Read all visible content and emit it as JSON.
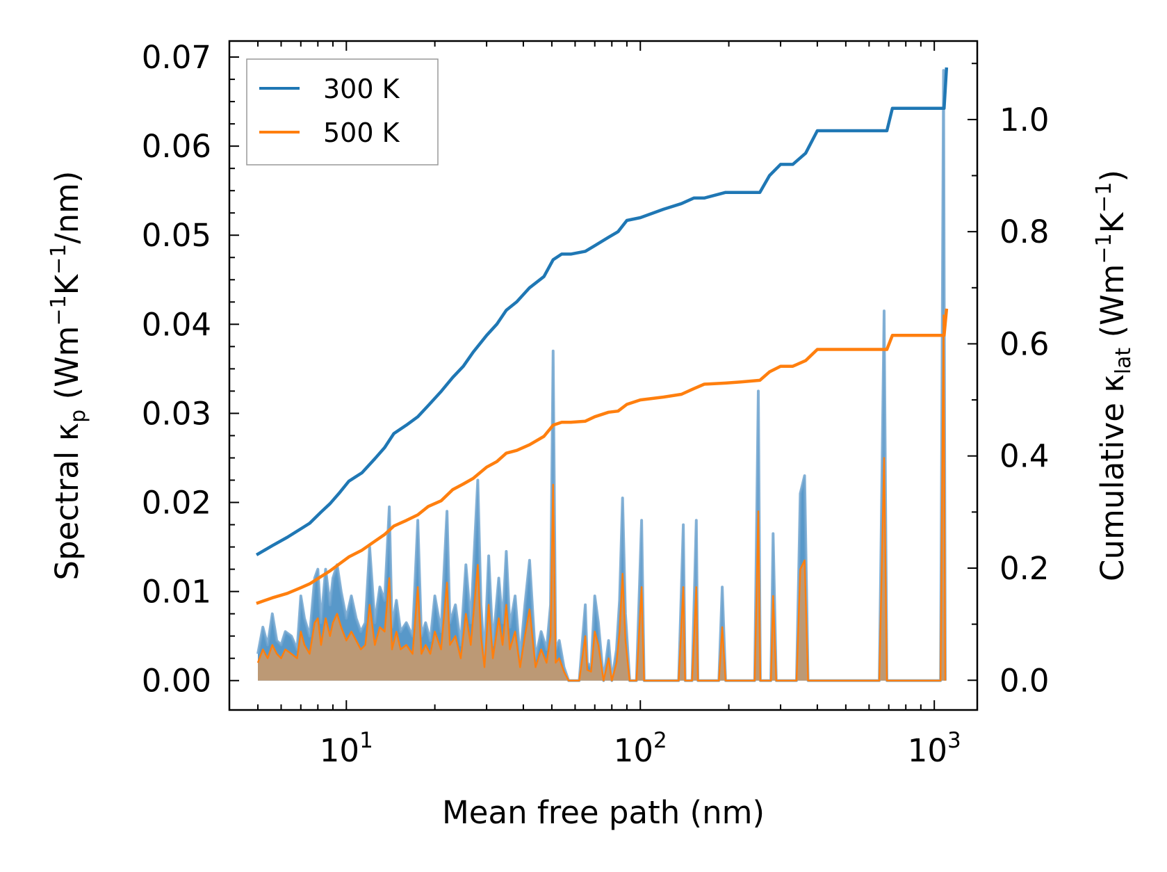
{
  "chart_data": {
    "type": "line",
    "xlabel": "Mean free path (nm)",
    "xscale": "log",
    "xlim": [
      4.0,
      1400
    ],
    "x_ticks": [
      {
        "value": 10,
        "base": "10",
        "exp": "1"
      },
      {
        "value": 100,
        "base": "10",
        "exp": "2"
      },
      {
        "value": 1000,
        "base": "10",
        "exp": "3"
      }
    ],
    "left_axis": {
      "label_main": "Spectral κ",
      "label_sub": "p",
      "label_unit_pre": " (Wm",
      "label_sup1": "−1",
      "label_mid": "K",
      "label_sup2": "−1",
      "label_post": "/nm)",
      "ylim": [
        -0.0033,
        0.0718
      ],
      "ticks": [
        {
          "value": 0.0,
          "label": "0.00"
        },
        {
          "value": 0.01,
          "label": "0.01"
        },
        {
          "value": 0.02,
          "label": "0.02"
        },
        {
          "value": 0.03,
          "label": "0.03"
        },
        {
          "value": 0.04,
          "label": "0.04"
        },
        {
          "value": 0.05,
          "label": "0.05"
        },
        {
          "value": 0.06,
          "label": "0.06"
        },
        {
          "value": 0.07,
          "label": "0.07"
        }
      ]
    },
    "right_axis": {
      "label_main": "Cumulative κ",
      "label_sub": "lat",
      "label_unit_pre": " (Wm",
      "label_sup1": "−1",
      "label_mid": "K",
      "label_sup2": "−1",
      "label_post": ")",
      "ylim": [
        -0.053,
        1.14
      ],
      "ticks": [
        {
          "value": 0.0,
          "label": "0.0"
        },
        {
          "value": 0.2,
          "label": "0.2"
        },
        {
          "value": 0.4,
          "label": "0.4"
        },
        {
          "value": 0.6,
          "label": "0.6"
        },
        {
          "value": 0.8,
          "label": "0.8"
        },
        {
          "value": 1.0,
          "label": "1.0"
        }
      ]
    },
    "legend": {
      "position": "top-left",
      "entries": [
        "300 K",
        "500 K"
      ]
    },
    "colors": {
      "s300": "#1f77b4",
      "s500": "#ff7f0e",
      "fill300": "#3b86bf",
      "fill500": "#c8996b"
    },
    "cumulative_series": [
      {
        "name": "300 K",
        "axis": "right",
        "x": [
          5.0,
          5.6,
          6.3,
          7.0,
          7.5,
          8.2,
          8.8,
          9.5,
          10.2,
          11.3,
          12.5,
          13.5,
          14.5,
          16.0,
          17.5,
          19.0,
          21.0,
          23.0,
          25.0,
          27.0,
          30.0,
          32.5,
          35.0,
          38.0,
          42.0,
          47.0,
          50.5,
          54.0,
          58.0,
          65.0,
          70.0,
          78.0,
          84.0,
          90.0,
          100.0,
          120.0,
          138.0,
          152.0,
          165.0,
          195.0,
          220.0,
          255.0,
          275.0,
          300.0,
          330.0,
          365.0,
          400.0,
          500.0,
          690.0,
          720.0,
          1000.0,
          1080.0,
          1100.0
        ],
        "y": [
          0.225,
          0.24,
          0.255,
          0.27,
          0.28,
          0.3,
          0.315,
          0.335,
          0.355,
          0.37,
          0.395,
          0.415,
          0.44,
          0.455,
          0.47,
          0.49,
          0.515,
          0.54,
          0.56,
          0.585,
          0.615,
          0.635,
          0.66,
          0.675,
          0.7,
          0.72,
          0.75,
          0.76,
          0.76,
          0.765,
          0.775,
          0.79,
          0.8,
          0.82,
          0.825,
          0.84,
          0.85,
          0.86,
          0.86,
          0.87,
          0.87,
          0.87,
          0.9,
          0.92,
          0.92,
          0.94,
          0.98,
          0.98,
          0.98,
          1.02,
          1.02,
          1.02,
          1.09
        ]
      },
      {
        "name": "500 K",
        "axis": "right",
        "x": [
          5.0,
          5.6,
          6.3,
          7.0,
          7.5,
          8.2,
          8.8,
          9.5,
          10.2,
          11.3,
          12.5,
          13.5,
          14.5,
          16.0,
          17.5,
          19.0,
          21.0,
          23.0,
          25.0,
          27.0,
          30.0,
          32.5,
          35.0,
          38.0,
          42.0,
          47.0,
          50.5,
          54.0,
          58.0,
          65.0,
          70.0,
          78.0,
          84.0,
          90.0,
          100.0,
          120.0,
          138.0,
          152.0,
          165.0,
          195.0,
          220.0,
          255.0,
          275.0,
          300.0,
          330.0,
          365.0,
          400.0,
          500.0,
          690.0,
          720.0,
          1000.0,
          1080.0,
          1100.0
        ],
        "y": [
          0.138,
          0.147,
          0.155,
          0.165,
          0.172,
          0.185,
          0.195,
          0.208,
          0.22,
          0.232,
          0.248,
          0.26,
          0.275,
          0.285,
          0.295,
          0.31,
          0.32,
          0.34,
          0.35,
          0.36,
          0.38,
          0.39,
          0.405,
          0.41,
          0.42,
          0.435,
          0.455,
          0.46,
          0.46,
          0.462,
          0.47,
          0.478,
          0.48,
          0.492,
          0.5,
          0.505,
          0.51,
          0.52,
          0.528,
          0.53,
          0.532,
          0.535,
          0.55,
          0.56,
          0.56,
          0.57,
          0.59,
          0.59,
          0.59,
          0.615,
          0.615,
          0.615,
          0.66
        ]
      }
    ],
    "spectral_series": [
      {
        "name": "300 K spectral",
        "axis": "left",
        "x": [
          5.0,
          5.2,
          5.4,
          5.6,
          5.8,
          6.0,
          6.2,
          6.5,
          6.8,
          7.0,
          7.2,
          7.5,
          7.8,
          8.0,
          8.2,
          8.5,
          8.8,
          9.0,
          9.3,
          9.6,
          10.0,
          10.4,
          10.8,
          11.2,
          11.6,
          12.0,
          12.5,
          13.0,
          13.5,
          14.0,
          14.3,
          14.8,
          15.3,
          16.0,
          16.8,
          17.5,
          18.0,
          18.6,
          19.3,
          20.0,
          21.0,
          22.0,
          22.5,
          23.5,
          24.5,
          25.5,
          26.5,
          28.0,
          28.7,
          29.5,
          30.5,
          31.5,
          33.0,
          34.0,
          35.0,
          36.0,
          37.5,
          39.0,
          40.5,
          42.0,
          44.0,
          46.0,
          48.0,
          49.5,
          50.5,
          51.5,
          53.0,
          55.0,
          57.0,
          62.0,
          65.0,
          66.0,
          68.0,
          70.0,
          72.0,
          75.0,
          78.0,
          80.0,
          83.0,
          85.0,
          87.0,
          89.0,
          92.0,
          97.0,
          101.0,
          103.0,
          105.0,
          107.0,
          135.0,
          140.0,
          142.0,
          150.0,
          155.0,
          157.0,
          160.0,
          185.0,
          190.0,
          195.0,
          200.0,
          245.0,
          252.0,
          256.0,
          262.0,
          278.0,
          283.0,
          290.0,
          297.0,
          340.0,
          350.0,
          362.0,
          372.0,
          650.0,
          675.0,
          690.0,
          705.0,
          1050.0,
          1075.0,
          1090.0
        ],
        "y": [
          0.003,
          0.006,
          0.004,
          0.0075,
          0.0045,
          0.004,
          0.0055,
          0.005,
          0.0035,
          0.0095,
          0.007,
          0.005,
          0.0115,
          0.0125,
          0.0065,
          0.0125,
          0.0085,
          0.0115,
          0.013,
          0.01,
          0.007,
          0.0095,
          0.007,
          0.0055,
          0.0065,
          0.015,
          0.0065,
          0.0105,
          0.009,
          0.0195,
          0.006,
          0.009,
          0.0055,
          0.0065,
          0.005,
          0.018,
          0.005,
          0.0065,
          0.0045,
          0.0095,
          0.0055,
          0.019,
          0.0065,
          0.0085,
          0.004,
          0.013,
          0.0065,
          0.0225,
          0.0085,
          0.0025,
          0.014,
          0.004,
          0.0115,
          0.0065,
          0.0145,
          0.006,
          0.0095,
          0.0025,
          0.0085,
          0.0135,
          0.0025,
          0.0055,
          0.0035,
          0.0085,
          0.037,
          0.0035,
          0.0045,
          0.0015,
          0.0,
          0.0,
          0.0085,
          0.002,
          0.0015,
          0.0095,
          0.0065,
          0.0,
          0.0045,
          0.0,
          0.0035,
          0.009,
          0.0205,
          0.0075,
          0.0,
          0.0,
          0.018,
          0.0,
          0.0,
          0.0,
          0.0,
          0.0175,
          0.0,
          0.0,
          0.018,
          0.0,
          0.0,
          0.0,
          0.0105,
          0.0,
          0.0,
          0.0,
          0.0325,
          0.0,
          0.0,
          0.0,
          0.0165,
          0.0,
          0.0,
          0.0,
          0.021,
          0.023,
          0.0,
          0.0,
          0.0415,
          0.0,
          0.0,
          0.0,
          0.0685,
          0.0
        ]
      },
      {
        "name": "500 K spectral",
        "axis": "left",
        "x": [
          5.0,
          5.2,
          5.4,
          5.6,
          5.8,
          6.0,
          6.2,
          6.5,
          6.8,
          7.0,
          7.2,
          7.5,
          7.8,
          8.0,
          8.2,
          8.5,
          8.8,
          9.0,
          9.3,
          9.6,
          10.0,
          10.4,
          10.8,
          11.2,
          11.6,
          12.0,
          12.5,
          13.0,
          13.5,
          14.0,
          14.3,
          14.8,
          15.3,
          16.0,
          16.8,
          17.5,
          18.0,
          18.6,
          19.3,
          20.0,
          21.0,
          22.0,
          22.5,
          23.5,
          24.5,
          25.5,
          26.5,
          28.0,
          28.7,
          29.5,
          30.5,
          31.5,
          33.0,
          34.0,
          35.0,
          36.0,
          37.5,
          39.0,
          40.5,
          42.0,
          44.0,
          46.0,
          48.0,
          49.5,
          50.5,
          51.5,
          53.0,
          55.0,
          57.0,
          62.0,
          65.0,
          66.0,
          68.0,
          70.0,
          72.0,
          75.0,
          78.0,
          80.0,
          83.0,
          85.0,
          87.0,
          89.0,
          92.0,
          97.0,
          101.0,
          103.0,
          105.0,
          107.0,
          135.0,
          140.0,
          142.0,
          150.0,
          155.0,
          157.0,
          160.0,
          185.0,
          190.0,
          195.0,
          200.0,
          245.0,
          252.0,
          256.0,
          262.0,
          278.0,
          283.0,
          290.0,
          297.0,
          340.0,
          350.0,
          362.0,
          372.0,
          650.0,
          675.0,
          690.0,
          705.0,
          1050.0,
          1075.0,
          1090.0
        ],
        "y": [
          0.002,
          0.0035,
          0.0025,
          0.004,
          0.003,
          0.0025,
          0.0035,
          0.003,
          0.0025,
          0.0055,
          0.004,
          0.003,
          0.0065,
          0.007,
          0.004,
          0.007,
          0.005,
          0.0065,
          0.0075,
          0.006,
          0.0045,
          0.0055,
          0.0045,
          0.0035,
          0.004,
          0.0085,
          0.004,
          0.006,
          0.0055,
          0.0115,
          0.0035,
          0.0055,
          0.0035,
          0.004,
          0.003,
          0.0105,
          0.003,
          0.004,
          0.003,
          0.0055,
          0.0035,
          0.011,
          0.004,
          0.005,
          0.0025,
          0.0075,
          0.004,
          0.013,
          0.005,
          0.0015,
          0.0085,
          0.0025,
          0.007,
          0.004,
          0.0085,
          0.0035,
          0.0055,
          0.0015,
          0.005,
          0.008,
          0.0015,
          0.0035,
          0.002,
          0.005,
          0.022,
          0.002,
          0.0025,
          0.001,
          0.0,
          0.0,
          0.005,
          0.0012,
          0.001,
          0.0055,
          0.004,
          0.0,
          0.0025,
          0.0,
          0.002,
          0.0055,
          0.012,
          0.0045,
          0.0,
          0.0,
          0.0105,
          0.0,
          0.0,
          0.0,
          0.0,
          0.0105,
          0.0,
          0.0,
          0.0105,
          0.0,
          0.0,
          0.0,
          0.006,
          0.0,
          0.0,
          0.0,
          0.019,
          0.0,
          0.0,
          0.0,
          0.0095,
          0.0,
          0.0,
          0.0,
          0.0125,
          0.0135,
          0.0,
          0.0,
          0.025,
          0.0,
          0.0,
          0.0,
          0.041,
          0.0
        ]
      }
    ]
  }
}
